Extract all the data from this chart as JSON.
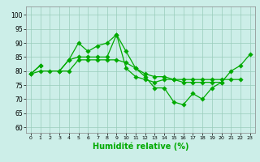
{
  "background_color": "#cceee8",
  "grid_color": "#99ccbb",
  "line_color": "#00aa00",
  "xlabel": "Humidité relative (%)",
  "xlabel_fontsize": 7,
  "ylabel_ticks": [
    60,
    65,
    70,
    75,
    80,
    85,
    90,
    95,
    100
  ],
  "xlim": [
    -0.5,
    23.5
  ],
  "ylim": [
    58,
    103
  ],
  "s1": [
    79,
    82,
    null,
    80,
    84,
    90,
    87,
    89,
    90,
    93,
    87,
    81,
    78,
    74,
    74,
    69,
    68,
    72,
    70,
    74,
    76,
    80,
    82,
    86
  ],
  "s2": [
    79,
    82,
    null,
    80,
    84,
    85,
    85,
    85,
    85,
    93,
    81,
    78,
    77,
    76,
    77,
    77,
    76,
    76,
    76,
    76,
    76,
    null,
    null,
    null
  ],
  "s3": [
    79,
    80,
    80,
    80,
    80,
    84,
    84,
    84,
    84,
    84,
    83,
    81,
    79,
    78,
    78,
    77,
    77,
    77,
    77,
    77,
    77,
    77,
    77,
    null
  ]
}
